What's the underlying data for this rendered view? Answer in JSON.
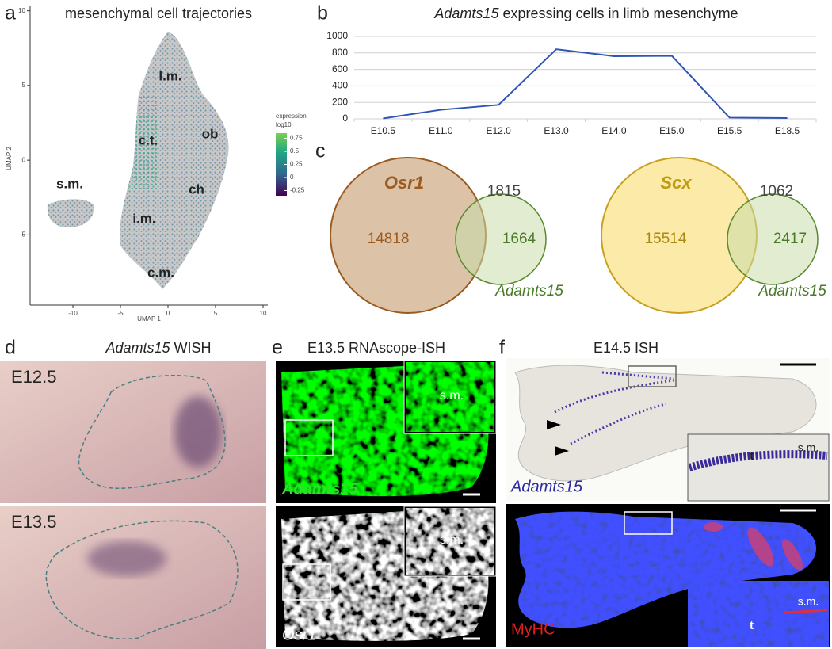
{
  "chart_data": [
    {
      "type": "scatter",
      "title": "mesenchymal cell trajectories",
      "xlabel": "UMAP 1",
      "ylabel": "UMAP 2",
      "xlim": [
        -14.5,
        10.5
      ],
      "ylim": [
        -9.7,
        10.3
      ],
      "xticks": [
        -10,
        -5,
        0,
        5,
        10
      ],
      "yticks": [
        -5,
        0,
        5,
        10
      ],
      "cluster_labels": [
        "l.m.",
        "c.t.",
        "ob",
        "s.m.",
        "ch",
        "i.m.",
        "c.m."
      ],
      "colorbar": {
        "title": [
          "expression",
          "log10"
        ],
        "lim": [
          -0.35,
          0.85
        ],
        "ticks": [
          0.75,
          0.5,
          0.25,
          0,
          -0.25
        ]
      }
    },
    {
      "type": "line",
      "title": [
        "Adamts15",
        "expressing cells in limb mesenchyme"
      ],
      "categories": [
        "E10.5",
        "E11.0",
        "E12.0",
        "E13.0",
        "E14.0",
        "E15.0",
        "E15.5",
        "E18.5"
      ],
      "values": [
        5,
        110,
        170,
        845,
        760,
        765,
        15,
        10
      ],
      "color": "#2e54b8",
      "ylim": [
        0,
        1000
      ],
      "yticks": [
        0,
        200,
        400,
        600,
        800,
        1000
      ],
      "grid": true
    }
  ],
  "figure": {
    "panel_letters": [
      "a",
      "b",
      "c",
      "d",
      "e",
      "f"
    ],
    "venn": [
      {
        "set": "Osr1",
        "set_only": 14818,
        "overlap": 1815,
        "adamts_only": 1664,
        "other": "Adamts15"
      },
      {
        "set": "Scx",
        "set_only": 15514,
        "overlap": 1062,
        "adamts_only": 2417,
        "other": "Adamts15"
      }
    ],
    "d": {
      "title": [
        "Adamts15",
        "WISH"
      ],
      "stages": [
        "E12.5",
        "E13.5"
      ]
    },
    "e": {
      "title": "E13.5 RNAscope-ISH",
      "insets": [
        "s.m.",
        "s.m."
      ],
      "stains": [
        "Adamts15",
        "Osr1"
      ]
    },
    "f": {
      "title": "E14.5 ISH",
      "inset_top": [
        "t",
        "s.m."
      ],
      "inset_bottom": [
        "t",
        "s.m."
      ],
      "stains": [
        "Adamts15",
        "MyHC"
      ]
    }
  }
}
